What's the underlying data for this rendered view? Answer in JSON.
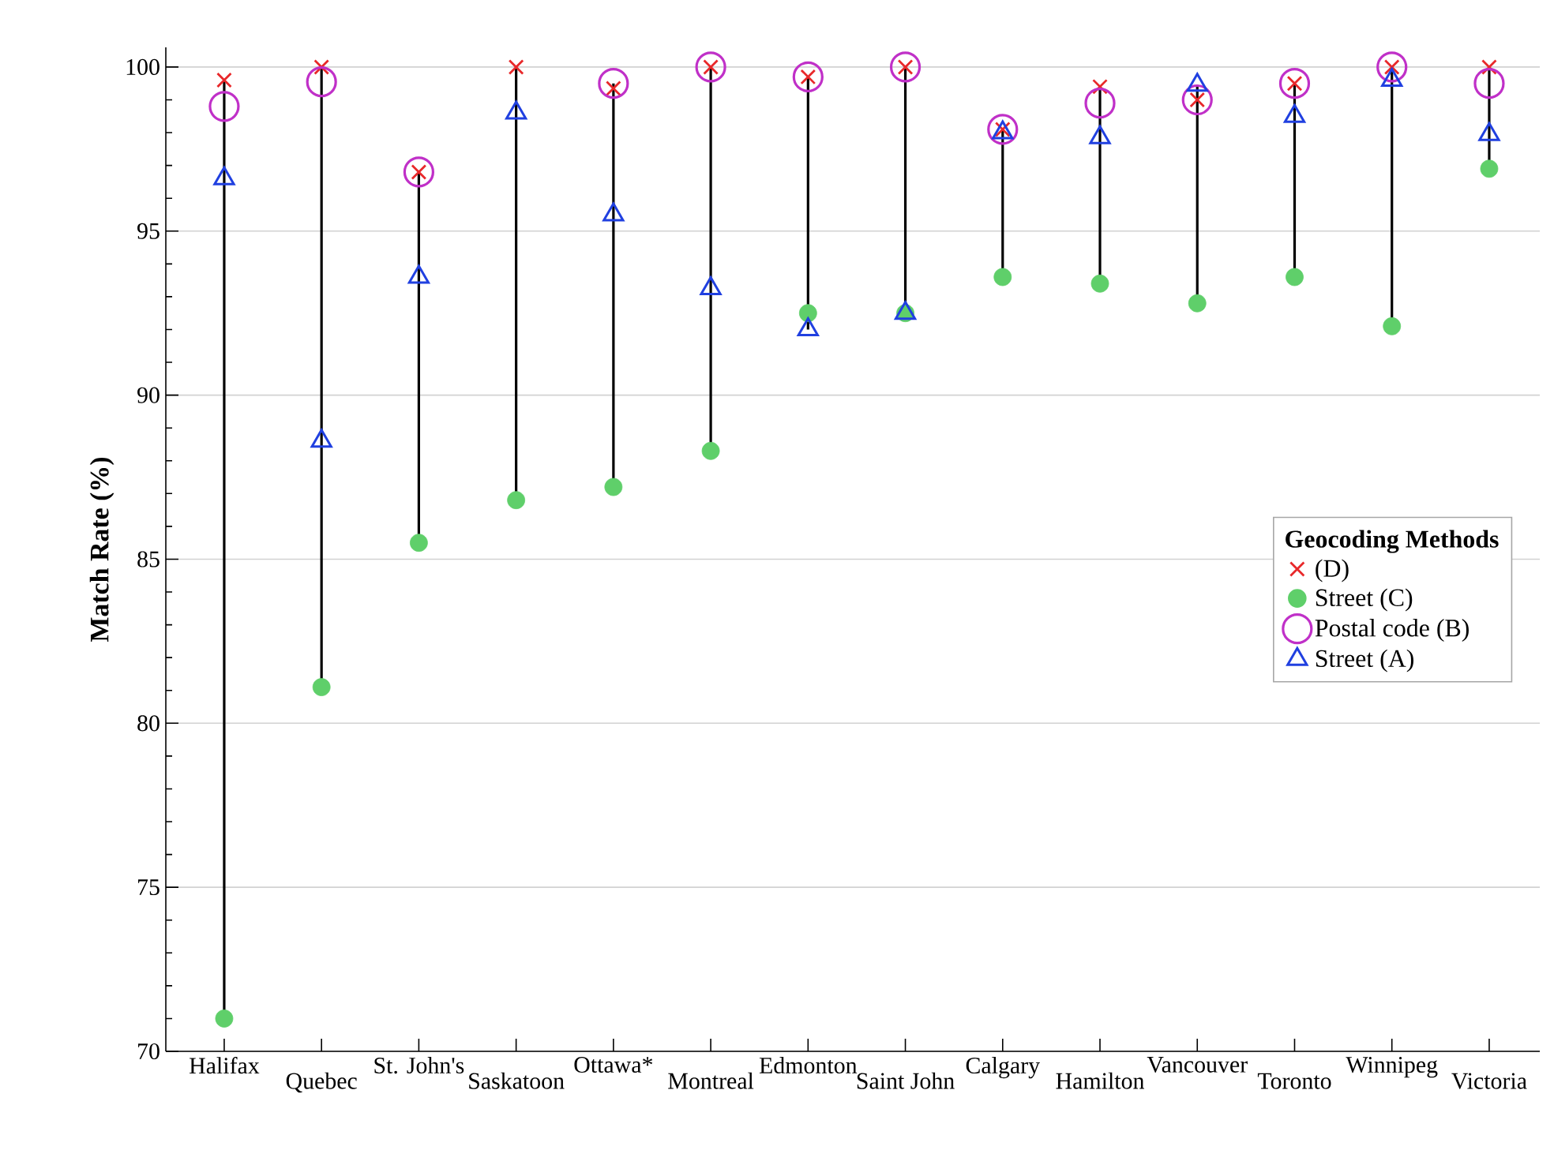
{
  "chart_data": {
    "type": "scatter",
    "ylabel": "Match Rate (%)",
    "legend_title": "Geocoding Methods",
    "categories": [
      "Halifax",
      "Quebec",
      "St. John's",
      "Saskatoon",
      "Ottawa*",
      "Montreal",
      "Edmonton",
      "Saint John",
      "Calgary",
      "Hamilton",
      "Vancouver",
      "Toronto",
      "Winnipeg",
      "Victoria"
    ],
    "series": [
      {
        "name": "(D)",
        "color": "#e8282a",
        "marker": "cross",
        "values": [
          99.6,
          100,
          96.8,
          100,
          99.35,
          100,
          99.7,
          100,
          98.1,
          99.4,
          99.0,
          99.5,
          100,
          100
        ]
      },
      {
        "name": "Street (C)",
        "color": "#5fcf6a",
        "marker": "circle",
        "values": [
          71.0,
          81.1,
          85.5,
          86.8,
          87.2,
          88.3,
          92.5,
          92.5,
          93.6,
          93.4,
          92.8,
          93.6,
          92.1,
          96.9
        ]
      },
      {
        "name": "Postal code (B)",
        "color": "#c030c8",
        "marker": "circle",
        "values": [
          98.8,
          99.55,
          96.8,
          null,
          99.5,
          100,
          99.7,
          100,
          98.1,
          98.9,
          99.0,
          99.5,
          100,
          99.5
        ]
      },
      {
        "name": "Street (A)",
        "color": "#2040e0",
        "marker": "triangle",
        "values": [
          96.6,
          88.6,
          93.6,
          98.6,
          95.5,
          93.25,
          92.0,
          92.5,
          98.0,
          97.85,
          99.45,
          98.5,
          99.6,
          97.95
        ]
      }
    ],
    "ylim": [
      70,
      100.6
    ],
    "yticks": [
      70,
      75,
      80,
      85,
      90,
      95,
      100
    ],
    "grid": "y",
    "legend": "right"
  }
}
